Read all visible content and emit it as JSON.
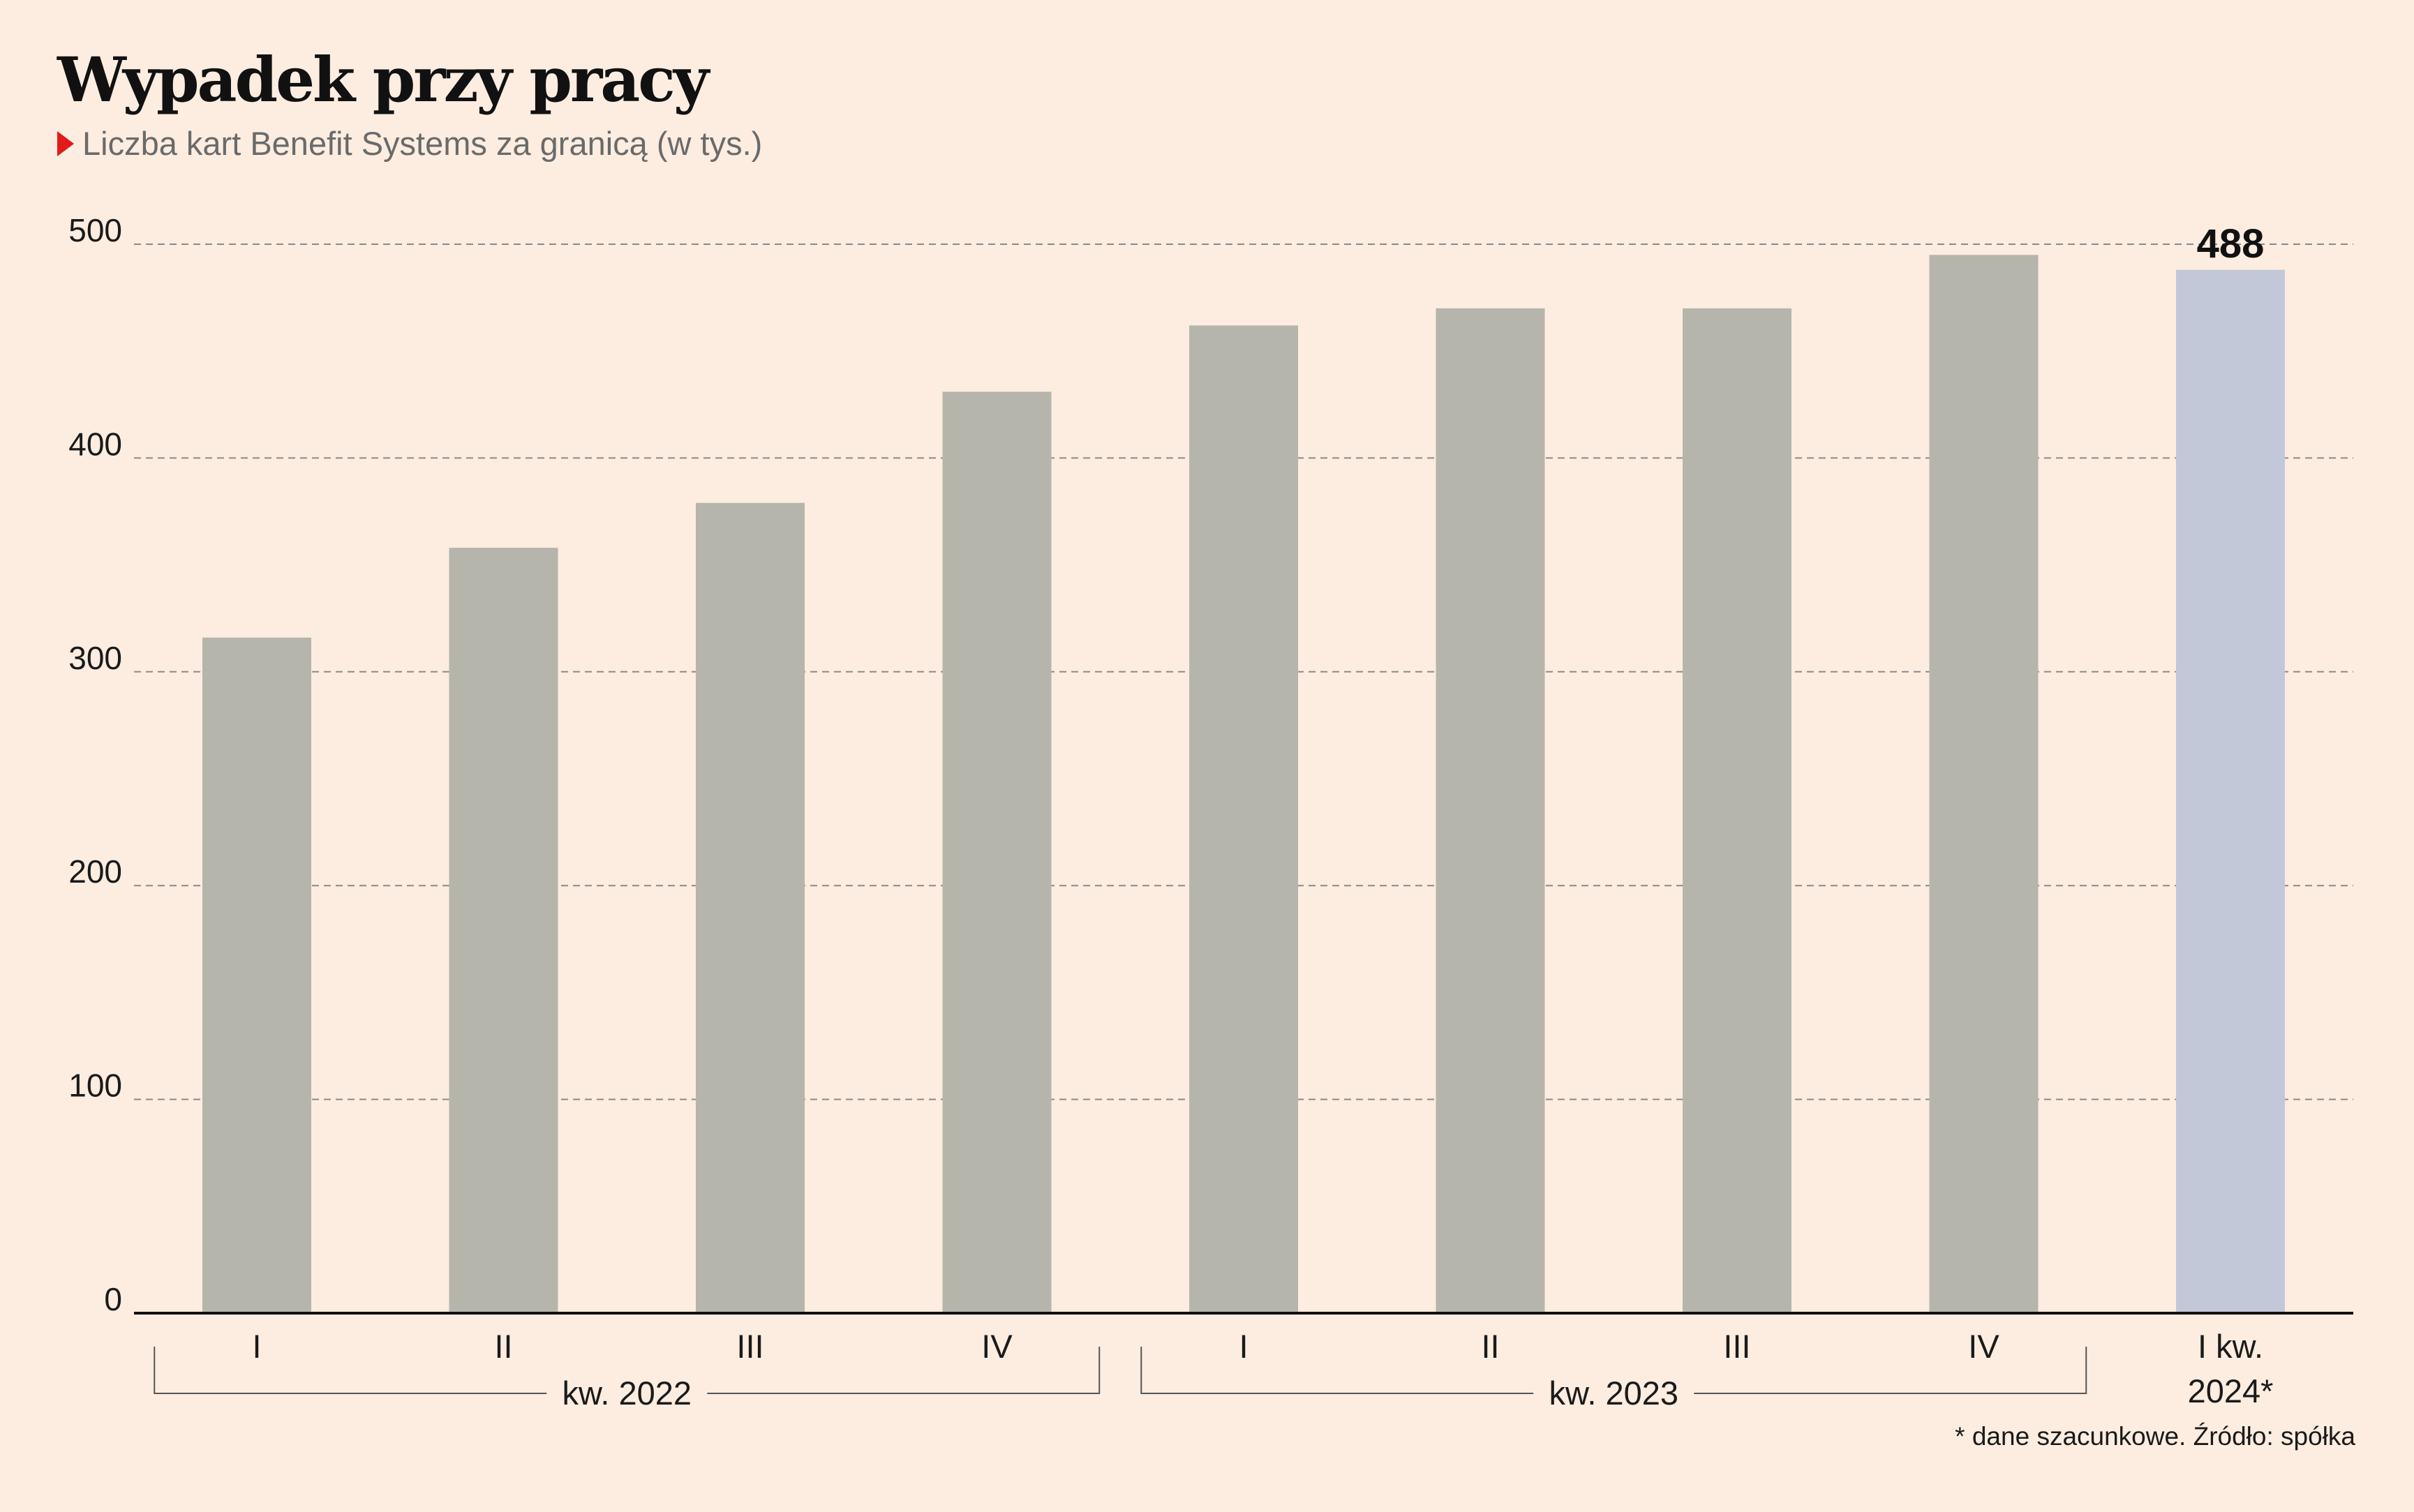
{
  "chart_data": {
    "type": "bar",
    "title": "Wypadek przy pracy",
    "subtitle": "Liczba kart Benefit Systems za granicą (w tys.)",
    "categories": [
      "I",
      "II",
      "III",
      "IV",
      "I",
      "II",
      "III",
      "IV",
      "I kw. 2024*"
    ],
    "values": [
      316,
      358,
      379,
      431,
      462,
      470,
      470,
      495,
      488
    ],
    "groups": [
      {
        "label": "kw. 2022",
        "span": [
          0,
          3
        ]
      },
      {
        "label": "kw. 2023",
        "span": [
          4,
          7
        ]
      }
    ],
    "ylim": [
      0,
      500
    ],
    "yticks": [
      0,
      100,
      200,
      300,
      400,
      500
    ],
    "grid": true,
    "data_labels": [
      {
        "index": 8,
        "text": "488"
      }
    ],
    "colors": {
      "bar": "#b5b5ab",
      "highlight": "#c2c8d8",
      "marker": "#e21a1a",
      "background": "#fcede0"
    },
    "highlight_index": 8,
    "footnote": "* dane szacunkowe. Źródło: spółka"
  }
}
